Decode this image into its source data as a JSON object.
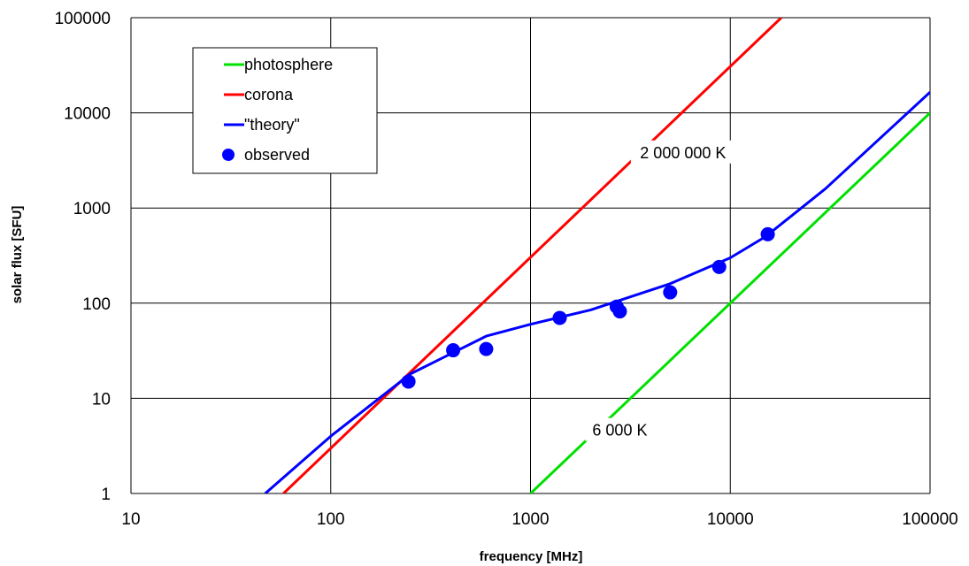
{
  "chart_data": {
    "type": "line",
    "title": "",
    "xlabel": "frequency  [MHz]",
    "ylabel": "solar flux [SFU]",
    "xscale": "log",
    "yscale": "log",
    "xlim": [
      10,
      100000
    ],
    "ylim": [
      1,
      100000
    ],
    "grid": true,
    "legend_position": "top-left",
    "x_tick_labels": [
      "10",
      "100",
      "1000",
      "10000",
      "100000"
    ],
    "y_tick_labels": [
      "1",
      "10",
      "100",
      "1000",
      "10000",
      "100000"
    ],
    "series": [
      {
        "name": "photosphere",
        "kind": "line",
        "color": "#00e000",
        "x": [
          1000,
          100000
        ],
        "y": [
          1,
          10000
        ]
      },
      {
        "name": "corona",
        "kind": "line",
        "color": "#ff0000",
        "x": [
          58,
          18000
        ],
        "y": [
          1,
          100000
        ]
      },
      {
        "name": "\"theory\"",
        "kind": "line",
        "color": "#0000ff",
        "x": [
          47,
          100,
          250,
          600,
          1000,
          2000,
          5000,
          10000,
          15000,
          30000,
          100000
        ],
        "y": [
          1,
          4,
          18,
          45,
          60,
          85,
          160,
          300,
          500,
          1600,
          16500
        ]
      },
      {
        "name": "observed",
        "kind": "scatter",
        "color": "#0000ff",
        "x": [
          245,
          410,
          600,
          1400,
          2700,
          2800,
          5000,
          8800,
          15400
        ],
        "y": [
          15,
          32,
          33,
          70,
          92,
          82,
          130,
          240,
          530
        ]
      }
    ],
    "annotations": [
      {
        "text": "2 000 000 K",
        "x": 5800,
        "y": 3800
      },
      {
        "text": "6 000 K",
        "x": 2800,
        "y": 4.6
      }
    ]
  }
}
